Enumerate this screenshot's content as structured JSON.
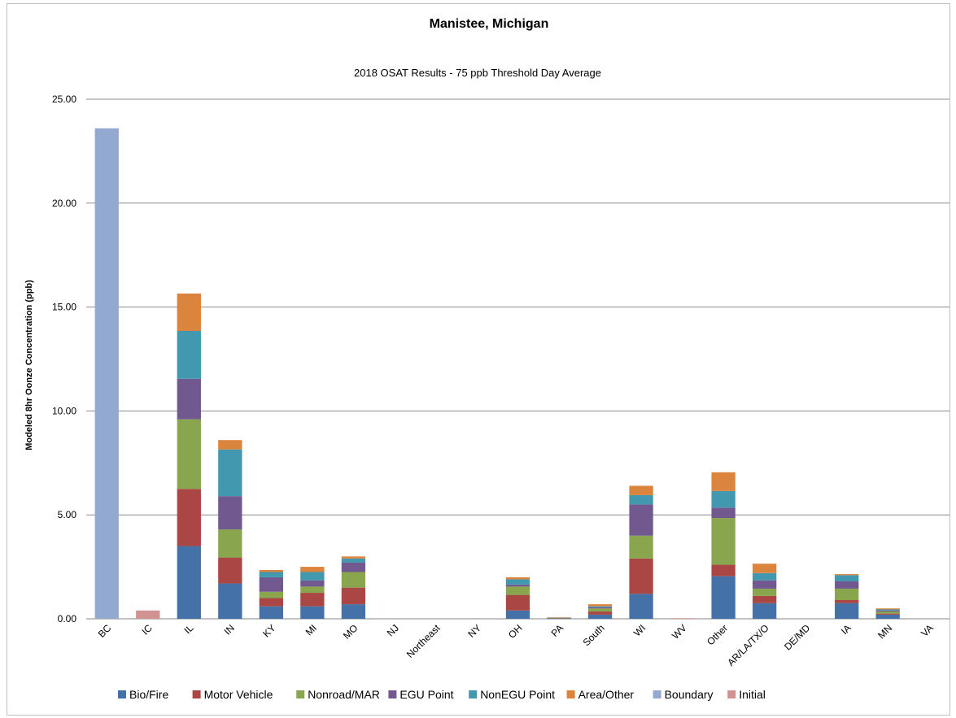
{
  "chart_data": {
    "type": "bar",
    "stacked": true,
    "title": "Manistee, Michigan",
    "subtitle": "2018 OSAT Results - 75 ppb Threshold Day Average",
    "xlabel": "",
    "ylabel": "Modeled 8hr Oonze Concentration (ppb)",
    "ylim": [
      0,
      25
    ],
    "yticks": [
      0,
      5,
      10,
      15,
      20,
      25
    ],
    "ytick_labels": [
      "0.00",
      "5.00",
      "10.00",
      "15.00",
      "20.00",
      "25.00"
    ],
    "grid": true,
    "legend_position": "bottom",
    "categories": [
      "BC",
      "IC",
      "IL",
      "IN",
      "KY",
      "MI",
      "MO",
      "NJ",
      "Northeast",
      "NY",
      "OH",
      "PA",
      "South",
      "WI",
      "WV",
      "Other",
      "AR/LA/TX/O",
      "DE/MD",
      "IA",
      "MN",
      "VA"
    ],
    "series": [
      {
        "name": "Bio/Fire",
        "color": "#4472A8",
        "values": [
          0,
          0,
          3.5,
          1.7,
          0.6,
          0.6,
          0.7,
          0,
          0,
          0,
          0.4,
          0.02,
          0.2,
          1.2,
          0,
          2.05,
          0.75,
          0,
          0.75,
          0.2,
          0
        ]
      },
      {
        "name": "Motor Vehicle",
        "color": "#AA4644",
        "values": [
          0,
          0,
          2.75,
          1.25,
          0.4,
          0.65,
          0.8,
          0,
          0,
          0,
          0.75,
          0.02,
          0.15,
          1.7,
          0,
          0.55,
          0.35,
          0,
          0.15,
          0.05,
          0
        ]
      },
      {
        "name": "Nonroad/MAR",
        "color": "#89A54E",
        "values": [
          0,
          0,
          3.35,
          1.35,
          0.3,
          0.3,
          0.75,
          0,
          0,
          0,
          0.4,
          0.01,
          0.15,
          1.1,
          0,
          2.25,
          0.35,
          0,
          0.55,
          0.1,
          0
        ]
      },
      {
        "name": "EGU Point",
        "color": "#71588F",
        "values": [
          0,
          0,
          1.95,
          1.6,
          0.7,
          0.3,
          0.45,
          0,
          0,
          0,
          0.1,
          0,
          0.05,
          1.5,
          0,
          0.5,
          0.4,
          0,
          0.35,
          0.05,
          0
        ]
      },
      {
        "name": "NonEGU Point",
        "color": "#4198AF",
        "values": [
          0,
          0,
          2.3,
          2.25,
          0.25,
          0.4,
          0.2,
          0,
          0,
          0,
          0.25,
          0,
          0.05,
          0.45,
          0,
          0.8,
          0.35,
          0,
          0.3,
          0.05,
          0
        ]
      },
      {
        "name": "Area/Other",
        "color": "#DB843D",
        "values": [
          0,
          0,
          1.8,
          0.45,
          0.1,
          0.25,
          0.1,
          0,
          0,
          0,
          0.1,
          0,
          0.1,
          0.45,
          0,
          0.9,
          0.45,
          0,
          0.05,
          0.05,
          0
        ]
      },
      {
        "name": "Boundary",
        "color": "#93A9CF",
        "values": [
          23.6,
          0,
          0,
          0,
          0,
          0,
          0,
          0,
          0,
          0,
          0,
          0,
          0,
          0,
          0,
          0,
          0,
          0,
          0,
          0,
          0
        ]
      },
      {
        "name": "Initial",
        "color": "#D19392",
        "values": [
          0,
          0.4,
          0,
          0,
          0,
          0,
          0,
          0,
          0,
          0,
          0,
          0.03,
          0,
          0,
          0.03,
          0,
          0,
          0,
          0,
          0,
          0
        ]
      }
    ]
  }
}
